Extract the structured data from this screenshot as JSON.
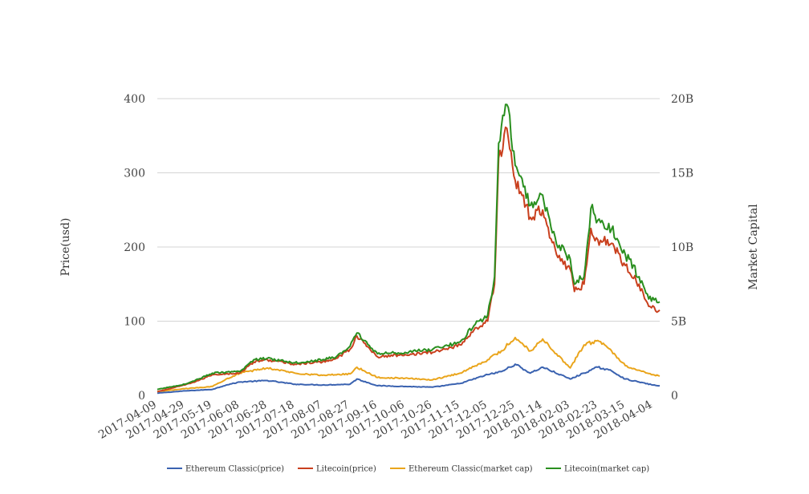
{
  "chart_data": {
    "type": "line",
    "y_left_label": "Price(usd)",
    "y_right_label": "Market Capital",
    "y_left_range": [
      0,
      400
    ],
    "y_right_range": [
      0,
      20000000000
    ],
    "y_left_ticks": [
      "0",
      "100",
      "200",
      "300",
      "400"
    ],
    "y_right_ticks": [
      "0",
      "5B",
      "10B",
      "15B",
      "20B"
    ],
    "x_range": [
      "2017-04-09",
      "2018-04-09"
    ],
    "x_ticks": [
      "2017-04-09",
      "2017-04-29",
      "2017-05-19",
      "2017-06-08",
      "2017-06-28",
      "2017-07-18",
      "2017-08-07",
      "2017-08-27",
      "2017-09-16",
      "2017-10-06",
      "2017-10-26",
      "2017-11-15",
      "2017-12-05",
      "2017-12-25",
      "2018-01-14",
      "2018-02-03",
      "2018-02-23",
      "2018-03-15",
      "2018-04-04"
    ],
    "grid": true,
    "legend_position": "bottom",
    "series": [
      {
        "name": "Ethereum Classic(price)",
        "axis": "left",
        "color": "#3a62b0",
        "points": [
          [
            "2017-04-09",
            3
          ],
          [
            "2017-04-29",
            6
          ],
          [
            "2017-05-19",
            8
          ],
          [
            "2017-05-29",
            14
          ],
          [
            "2017-06-08",
            18
          ],
          [
            "2017-06-28",
            20
          ],
          [
            "2017-07-18",
            15
          ],
          [
            "2017-08-07",
            14
          ],
          [
            "2017-08-27",
            15
          ],
          [
            "2017-09-01",
            22
          ],
          [
            "2017-09-16",
            13
          ],
          [
            "2017-10-06",
            12
          ],
          [
            "2017-10-26",
            11
          ],
          [
            "2017-11-15",
            16
          ],
          [
            "2017-12-05",
            28
          ],
          [
            "2017-12-15",
            32
          ],
          [
            "2017-12-25",
            42
          ],
          [
            "2018-01-05",
            30
          ],
          [
            "2018-01-14",
            38
          ],
          [
            "2018-02-03",
            22
          ],
          [
            "2018-02-13",
            30
          ],
          [
            "2018-02-23",
            38
          ],
          [
            "2018-03-05",
            33
          ],
          [
            "2018-03-15",
            22
          ],
          [
            "2018-03-25",
            18
          ],
          [
            "2018-04-04",
            14
          ],
          [
            "2018-04-09",
            13
          ]
        ]
      },
      {
        "name": "Litecoin(price)",
        "axis": "left",
        "color": "#c9401e",
        "points": [
          [
            "2017-04-09",
            5
          ],
          [
            "2017-04-29",
            14
          ],
          [
            "2017-05-09",
            20
          ],
          [
            "2017-05-19",
            28
          ],
          [
            "2017-06-08",
            30
          ],
          [
            "2017-06-18",
            45
          ],
          [
            "2017-06-28",
            48
          ],
          [
            "2017-07-18",
            42
          ],
          [
            "2017-08-07",
            45
          ],
          [
            "2017-08-17",
            50
          ],
          [
            "2017-08-27",
            62
          ],
          [
            "2017-09-01",
            80
          ],
          [
            "2017-09-16",
            52
          ],
          [
            "2017-10-06",
            55
          ],
          [
            "2017-10-26",
            58
          ],
          [
            "2017-11-15",
            68
          ],
          [
            "2017-11-25",
            88
          ],
          [
            "2017-12-05",
            100
          ],
          [
            "2017-12-10",
            150
          ],
          [
            "2017-12-13",
            320
          ],
          [
            "2017-12-19",
            360
          ],
          [
            "2017-12-25",
            290
          ],
          [
            "2018-01-05",
            240
          ],
          [
            "2018-01-14",
            250
          ],
          [
            "2018-01-24",
            190
          ],
          [
            "2018-02-03",
            170
          ],
          [
            "2018-02-06",
            140
          ],
          [
            "2018-02-13",
            150
          ],
          [
            "2018-02-18",
            225
          ],
          [
            "2018-02-23",
            210
          ],
          [
            "2018-03-05",
            205
          ],
          [
            "2018-03-15",
            175
          ],
          [
            "2018-03-25",
            150
          ],
          [
            "2018-04-01",
            120
          ],
          [
            "2018-04-09",
            115
          ]
        ]
      },
      {
        "name": "Ethereum Classic(market cap)",
        "axis": "right",
        "color": "#eaa51c",
        "points": [
          [
            "2017-04-09",
            250000000
          ],
          [
            "2017-04-29",
            450000000
          ],
          [
            "2017-05-19",
            600000000
          ],
          [
            "2017-05-29",
            1100000000
          ],
          [
            "2017-06-08",
            1500000000
          ],
          [
            "2017-06-28",
            1850000000
          ],
          [
            "2017-07-18",
            1500000000
          ],
          [
            "2017-08-07",
            1350000000
          ],
          [
            "2017-08-27",
            1450000000
          ],
          [
            "2017-09-01",
            1900000000
          ],
          [
            "2017-09-16",
            1200000000
          ],
          [
            "2017-10-06",
            1150000000
          ],
          [
            "2017-10-26",
            1050000000
          ],
          [
            "2017-11-15",
            1500000000
          ],
          [
            "2017-12-05",
            2400000000
          ],
          [
            "2017-12-15",
            3000000000
          ],
          [
            "2017-12-25",
            3900000000
          ],
          [
            "2018-01-05",
            3000000000
          ],
          [
            "2018-01-14",
            3800000000
          ],
          [
            "2018-01-24",
            2800000000
          ],
          [
            "2018-02-03",
            1850000000
          ],
          [
            "2018-02-13",
            3400000000
          ],
          [
            "2018-02-23",
            3700000000
          ],
          [
            "2018-03-05",
            3000000000
          ],
          [
            "2018-03-15",
            2000000000
          ],
          [
            "2018-03-25",
            1700000000
          ],
          [
            "2018-04-04",
            1400000000
          ],
          [
            "2018-04-09",
            1300000000
          ]
        ]
      },
      {
        "name": "Litecoin(market cap)",
        "axis": "right",
        "color": "#2a8f1f",
        "points": [
          [
            "2017-04-09",
            400000000
          ],
          [
            "2017-04-29",
            750000000
          ],
          [
            "2017-05-09",
            1100000000
          ],
          [
            "2017-05-19",
            1500000000
          ],
          [
            "2017-06-08",
            1600000000
          ],
          [
            "2017-06-18",
            2400000000
          ],
          [
            "2017-06-28",
            2500000000
          ],
          [
            "2017-07-18",
            2200000000
          ],
          [
            "2017-08-07",
            2400000000
          ],
          [
            "2017-08-17",
            2600000000
          ],
          [
            "2017-08-27",
            3300000000
          ],
          [
            "2017-09-01",
            4200000000
          ],
          [
            "2017-09-16",
            2800000000
          ],
          [
            "2017-10-06",
            2900000000
          ],
          [
            "2017-10-26",
            3100000000
          ],
          [
            "2017-11-15",
            3600000000
          ],
          [
            "2017-11-25",
            4700000000
          ],
          [
            "2017-12-05",
            5400000000
          ],
          [
            "2017-12-10",
            8000000000
          ],
          [
            "2017-12-13",
            17000000000
          ],
          [
            "2017-12-19",
            19600000000
          ],
          [
            "2017-12-25",
            15500000000
          ],
          [
            "2018-01-05",
            12800000000
          ],
          [
            "2018-01-14",
            13500000000
          ],
          [
            "2018-01-24",
            10200000000
          ],
          [
            "2018-02-03",
            9200000000
          ],
          [
            "2018-02-06",
            7500000000
          ],
          [
            "2018-02-13",
            8000000000
          ],
          [
            "2018-02-18",
            12600000000
          ],
          [
            "2018-02-23",
            11800000000
          ],
          [
            "2018-03-05",
            11200000000
          ],
          [
            "2018-03-15",
            9500000000
          ],
          [
            "2018-03-25",
            8000000000
          ],
          [
            "2018-04-01",
            6500000000
          ],
          [
            "2018-04-09",
            6300000000
          ]
        ]
      }
    ]
  }
}
